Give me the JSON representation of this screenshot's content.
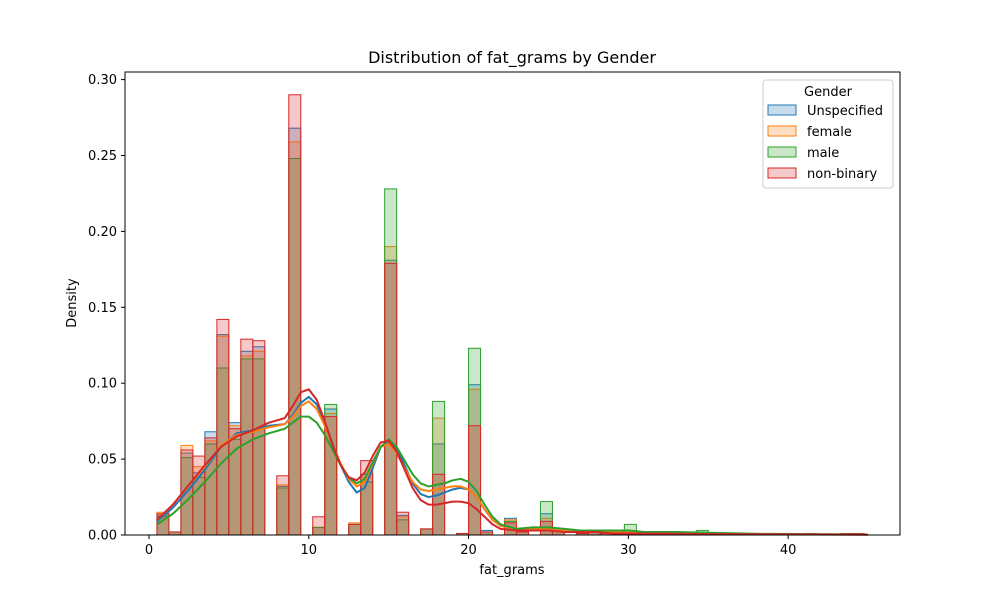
{
  "chart_data": {
    "type": "histogram",
    "title": "Distribution of fat_grams by Gender",
    "xlabel": "fat_grams",
    "ylabel": "Density",
    "xlim": [
      -1.5,
      47
    ],
    "ylim": [
      0,
      0.305
    ],
    "xticks": [
      0,
      10,
      20,
      30,
      40
    ],
    "yticks": [
      0.0,
      0.05,
      0.1,
      0.15,
      0.2,
      0.25,
      0.3
    ],
    "ytick_labels": [
      "0.00",
      "0.05",
      "0.10",
      "0.15",
      "0.20",
      "0.25",
      "0.30"
    ],
    "grid": false,
    "legend": {
      "title": "Gender",
      "placement": "top-right"
    },
    "bin_width": 0.75,
    "bin_starts": [
      0.5,
      1.25,
      2.0,
      2.75,
      3.5,
      4.25,
      5.0,
      5.75,
      6.5,
      7.25,
      8.0,
      8.75,
      9.5,
      10.25,
      11.0,
      11.75,
      12.5,
      13.25,
      14.0,
      14.75,
      15.5,
      16.25,
      17.0,
      17.75,
      18.5,
      19.25,
      20.0,
      20.75,
      21.5,
      22.25,
      23.0,
      23.75,
      24.5,
      25.25,
      26.0,
      26.75,
      27.5,
      28.25,
      29.0,
      29.75,
      30.5,
      31.25,
      32.0,
      32.75,
      33.5,
      34.25,
      35.0,
      35.75,
      36.5,
      37.25,
      38.0,
      38.75,
      39.5,
      40.25,
      41.0,
      41.75,
      42.5,
      43.25,
      44.0,
      44.75
    ],
    "series": [
      {
        "name": "Unspecified",
        "color": "#1f77b4",
        "values": [
          0.013,
          0.002,
          0.054,
          0.041,
          0.068,
          0.132,
          0.074,
          0.121,
          0.124,
          0,
          0.032,
          0.268,
          0,
          0.005,
          0.083,
          0,
          0.007,
          0.04,
          0,
          0.181,
          0.013,
          0,
          0.004,
          0.06,
          0,
          0.001,
          0.099,
          0.003,
          0,
          0.011,
          0.004,
          0,
          0.014,
          0.004,
          0,
          0.001,
          0.002,
          0.001,
          0,
          0.002,
          0.002,
          0,
          0.001,
          0.001,
          0,
          0.001,
          0.001,
          0,
          0.001,
          0,
          0,
          0.001,
          0.001,
          0,
          0.001,
          0,
          0,
          0.001,
          0.001,
          0
        ],
        "kde": [
          [
            0.5,
            0.009
          ],
          [
            1.5,
            0.018
          ],
          [
            2.5,
            0.03
          ],
          [
            3.5,
            0.043
          ],
          [
            4.5,
            0.058
          ],
          [
            5.5,
            0.067
          ],
          [
            6.5,
            0.069
          ],
          [
            7.5,
            0.072
          ],
          [
            8.5,
            0.073
          ],
          [
            9.0,
            0.079
          ],
          [
            9.5,
            0.087
          ],
          [
            10.0,
            0.091
          ],
          [
            10.5,
            0.086
          ],
          [
            11.0,
            0.074
          ],
          [
            11.5,
            0.06
          ],
          [
            12.0,
            0.046
          ],
          [
            12.5,
            0.035
          ],
          [
            13.0,
            0.028
          ],
          [
            13.5,
            0.031
          ],
          [
            14.0,
            0.044
          ],
          [
            14.5,
            0.058
          ],
          [
            15.0,
            0.062
          ],
          [
            15.5,
            0.057
          ],
          [
            16.0,
            0.046
          ],
          [
            16.5,
            0.034
          ],
          [
            17.0,
            0.027
          ],
          [
            17.5,
            0.025
          ],
          [
            18.0,
            0.026
          ],
          [
            18.5,
            0.028
          ],
          [
            19.0,
            0.03
          ],
          [
            19.5,
            0.031
          ],
          [
            20.0,
            0.03
          ],
          [
            20.5,
            0.025
          ],
          [
            21.0,
            0.017
          ],
          [
            21.5,
            0.01
          ],
          [
            22.0,
            0.006
          ],
          [
            23.0,
            0.004
          ],
          [
            24.0,
            0.004
          ],
          [
            25.0,
            0.005
          ],
          [
            26.0,
            0.003
          ],
          [
            27.0,
            0.002
          ],
          [
            28.0,
            0.002
          ],
          [
            29.0,
            0.002
          ],
          [
            30.0,
            0.002
          ],
          [
            31.0,
            0.001
          ],
          [
            33.0,
            0.001
          ],
          [
            36.0,
            0.0008
          ],
          [
            40.0,
            0.0005
          ],
          [
            45.0,
            0.0003
          ]
        ]
      },
      {
        "name": "female",
        "color": "#ff7f0e",
        "values": [
          0.015,
          0.002,
          0.059,
          0.045,
          0.062,
          0.131,
          0.072,
          0.118,
          0.121,
          0,
          0.033,
          0.259,
          0,
          0.005,
          0.08,
          0,
          0.008,
          0.038,
          0,
          0.19,
          0.012,
          0,
          0.004,
          0.077,
          0,
          0.001,
          0.096,
          0.002,
          0,
          0.01,
          0.003,
          0,
          0.011,
          0.003,
          0,
          0.001,
          0.002,
          0.001,
          0,
          0.002,
          0.002,
          0,
          0.001,
          0.001,
          0,
          0.001,
          0.001,
          0,
          0.001,
          0,
          0,
          0.001,
          0.001,
          0,
          0.001,
          0,
          0,
          0.001,
          0.001,
          0
        ],
        "kde": [
          [
            0.5,
            0.01
          ],
          [
            1.5,
            0.02
          ],
          [
            2.5,
            0.033
          ],
          [
            3.5,
            0.045
          ],
          [
            4.5,
            0.059
          ],
          [
            5.5,
            0.066
          ],
          [
            6.5,
            0.068
          ],
          [
            7.5,
            0.071
          ],
          [
            8.5,
            0.073
          ],
          [
            9.0,
            0.078
          ],
          [
            9.5,
            0.085
          ],
          [
            10.0,
            0.088
          ],
          [
            10.5,
            0.083
          ],
          [
            11.0,
            0.072
          ],
          [
            11.5,
            0.059
          ],
          [
            12.0,
            0.047
          ],
          [
            12.5,
            0.037
          ],
          [
            13.0,
            0.032
          ],
          [
            13.5,
            0.035
          ],
          [
            14.0,
            0.047
          ],
          [
            14.5,
            0.058
          ],
          [
            15.0,
            0.06
          ],
          [
            15.5,
            0.054
          ],
          [
            16.0,
            0.044
          ],
          [
            16.5,
            0.035
          ],
          [
            17.0,
            0.03
          ],
          [
            17.5,
            0.029
          ],
          [
            18.0,
            0.03
          ],
          [
            18.5,
            0.031
          ],
          [
            19.0,
            0.032
          ],
          [
            19.5,
            0.032
          ],
          [
            20.0,
            0.03
          ],
          [
            20.5,
            0.025
          ],
          [
            21.0,
            0.017
          ],
          [
            21.5,
            0.01
          ],
          [
            22.0,
            0.006
          ],
          [
            23.0,
            0.004
          ],
          [
            24.0,
            0.004
          ],
          [
            25.0,
            0.004
          ],
          [
            26.0,
            0.003
          ],
          [
            27.0,
            0.002
          ],
          [
            28.0,
            0.002
          ],
          [
            29.0,
            0.002
          ],
          [
            30.0,
            0.002
          ],
          [
            31.0,
            0.001
          ],
          [
            33.0,
            0.001
          ],
          [
            36.0,
            0.0008
          ],
          [
            40.0,
            0.0005
          ],
          [
            45.0,
            0.0003
          ]
        ]
      },
      {
        "name": "male",
        "color": "#2ca02c",
        "values": [
          0.012,
          0.002,
          0.051,
          0.038,
          0.06,
          0.11,
          0.063,
          0.116,
          0.116,
          0,
          0.031,
          0.248,
          0,
          0.005,
          0.086,
          0,
          0.007,
          0.035,
          0,
          0.228,
          0.01,
          0,
          0.004,
          0.088,
          0,
          0.001,
          0.123,
          0.002,
          0,
          0.009,
          0.004,
          0,
          0.022,
          0.004,
          0,
          0.001,
          0.002,
          0.001,
          0,
          0.007,
          0.002,
          0,
          0.001,
          0.001,
          0,
          0.003,
          0.001,
          0,
          0.001,
          0,
          0,
          0.001,
          0.001,
          0,
          0.001,
          0,
          0,
          0.001,
          0.001,
          0
        ],
        "kde": [
          [
            0.5,
            0.007
          ],
          [
            1.5,
            0.014
          ],
          [
            2.5,
            0.024
          ],
          [
            3.5,
            0.035
          ],
          [
            4.5,
            0.047
          ],
          [
            5.5,
            0.057
          ],
          [
            6.5,
            0.063
          ],
          [
            7.5,
            0.067
          ],
          [
            8.5,
            0.07
          ],
          [
            9.0,
            0.074
          ],
          [
            9.5,
            0.078
          ],
          [
            10.0,
            0.078
          ],
          [
            10.5,
            0.074
          ],
          [
            11.0,
            0.066
          ],
          [
            11.5,
            0.056
          ],
          [
            12.0,
            0.046
          ],
          [
            12.5,
            0.038
          ],
          [
            13.0,
            0.034
          ],
          [
            13.5,
            0.037
          ],
          [
            14.0,
            0.048
          ],
          [
            14.5,
            0.058
          ],
          [
            15.0,
            0.063
          ],
          [
            15.5,
            0.058
          ],
          [
            16.0,
            0.049
          ],
          [
            16.5,
            0.04
          ],
          [
            17.0,
            0.034
          ],
          [
            17.5,
            0.032
          ],
          [
            18.0,
            0.033
          ],
          [
            18.5,
            0.034
          ],
          [
            19.0,
            0.036
          ],
          [
            19.5,
            0.037
          ],
          [
            20.0,
            0.035
          ],
          [
            20.5,
            0.029
          ],
          [
            21.0,
            0.02
          ],
          [
            21.5,
            0.012
          ],
          [
            22.0,
            0.007
          ],
          [
            23.0,
            0.004
          ],
          [
            24.0,
            0.005
          ],
          [
            25.0,
            0.005
          ],
          [
            26.0,
            0.004
          ],
          [
            27.0,
            0.003
          ],
          [
            28.0,
            0.003
          ],
          [
            29.0,
            0.003
          ],
          [
            30.0,
            0.003
          ],
          [
            31.0,
            0.002
          ],
          [
            33.0,
            0.002
          ],
          [
            35.0,
            0.0015
          ],
          [
            38.0,
            0.0008
          ],
          [
            42.0,
            0.0005
          ],
          [
            45.0,
            0.0003
          ]
        ]
      },
      {
        "name": "non-binary",
        "color": "#d62728",
        "values": [
          0.014,
          0.002,
          0.056,
          0.052,
          0.064,
          0.142,
          0.07,
          0.129,
          0.128,
          0,
          0.039,
          0.29,
          0,
          0.012,
          0.078,
          0,
          0.007,
          0.049,
          0,
          0.179,
          0.015,
          0,
          0.004,
          0.04,
          0,
          0.001,
          0.072,
          0.002,
          0,
          0.008,
          0.002,
          0,
          0.009,
          0.003,
          0,
          0.001,
          0.002,
          0.001,
          0,
          0.001,
          0.001,
          0,
          0.001,
          0.001,
          0,
          0.001,
          0.001,
          0,
          0.001,
          0,
          0,
          0.001,
          0.001,
          0,
          0.001,
          0,
          0,
          0.001,
          0.001,
          0
        ],
        "kde": [
          [
            0.5,
            0.01
          ],
          [
            1.5,
            0.02
          ],
          [
            2.5,
            0.033
          ],
          [
            3.5,
            0.046
          ],
          [
            4.5,
            0.058
          ],
          [
            5.5,
            0.065
          ],
          [
            6.5,
            0.069
          ],
          [
            7.5,
            0.074
          ],
          [
            8.5,
            0.077
          ],
          [
            9.0,
            0.085
          ],
          [
            9.5,
            0.094
          ],
          [
            10.0,
            0.096
          ],
          [
            10.5,
            0.089
          ],
          [
            11.0,
            0.075
          ],
          [
            11.5,
            0.059
          ],
          [
            12.0,
            0.046
          ],
          [
            12.5,
            0.038
          ],
          [
            13.0,
            0.036
          ],
          [
            13.5,
            0.041
          ],
          [
            14.0,
            0.052
          ],
          [
            14.5,
            0.061
          ],
          [
            15.0,
            0.062
          ],
          [
            15.5,
            0.055
          ],
          [
            16.0,
            0.043
          ],
          [
            16.5,
            0.031
          ],
          [
            17.0,
            0.023
          ],
          [
            17.5,
            0.02
          ],
          [
            18.0,
            0.02
          ],
          [
            18.5,
            0.021
          ],
          [
            19.0,
            0.022
          ],
          [
            19.5,
            0.022
          ],
          [
            20.0,
            0.021
          ],
          [
            20.5,
            0.017
          ],
          [
            21.0,
            0.012
          ],
          [
            21.5,
            0.007
          ],
          [
            22.0,
            0.004
          ],
          [
            23.0,
            0.003
          ],
          [
            24.0,
            0.003
          ],
          [
            25.0,
            0.003
          ],
          [
            26.0,
            0.002
          ],
          [
            27.0,
            0.002
          ],
          [
            28.0,
            0.002
          ],
          [
            29.0,
            0.001
          ],
          [
            30.0,
            0.001
          ],
          [
            32.0,
            0.001
          ],
          [
            35.0,
            0.0006
          ],
          [
            40.0,
            0.0004
          ],
          [
            45.0,
            0.0002
          ]
        ]
      }
    ]
  }
}
